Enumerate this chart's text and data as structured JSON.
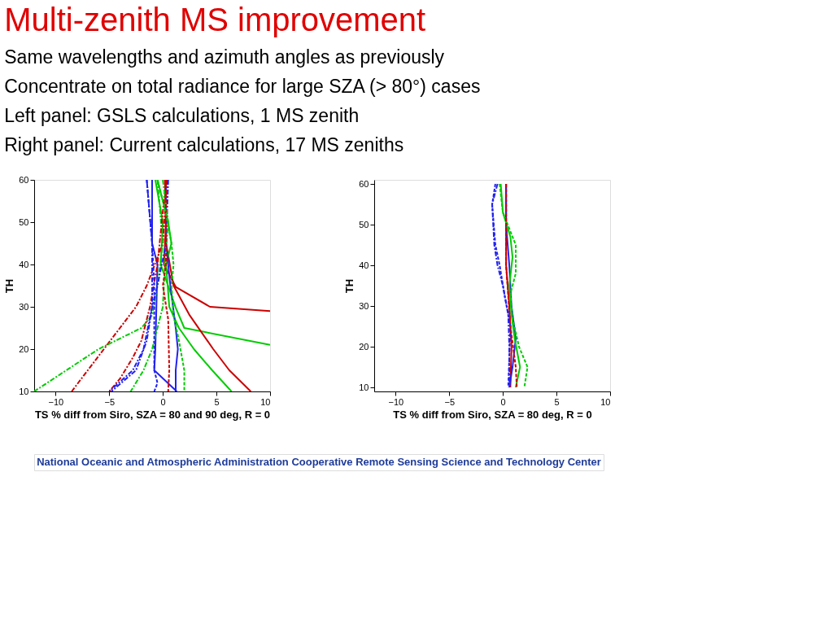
{
  "chart_data": [
    {
      "type": "line",
      "title": "Multi-zenith MS improvement",
      "xlabel": "TS % diff from Siro, SZA = 80 and 90 deg, R = 0",
      "ylabel": "TH",
      "xlim": [
        -12,
        10
      ],
      "xticks": [
        -10,
        -5,
        0,
        5,
        10
      ],
      "ylim": [
        10,
        60
      ],
      "yticks": [
        10,
        20,
        30,
        40,
        50,
        60
      ],
      "grid": false,
      "legend": false,
      "annotations": [
        "Same wavelengths and azimuth angles as previously",
        "Concentrate on total radiance for large SZA (> 80°) cases",
        "Left panel:  GSLS calculations, 1 MS zenith",
        "Right panel:  Current calculations, 17 MS zeniths",
        "National Oceanic and Atmospheric Administration Cooperative Remote Sensing Science and Technology Center"
      ],
      "series": [
        {
          "color": "#cc0000",
          "line_style": "solid",
          "x": [
            0.2,
            0.3,
            0.1,
            1.2,
            4.4,
            10
          ],
          "values": [
            60,
            50,
            40,
            34.7,
            30,
            29
          ]
        },
        {
          "color": "#00cc00",
          "line_style": "solid",
          "x": [
            -0.7,
            0,
            -0.2,
            1.2,
            2,
            10
          ],
          "values": [
            60,
            50,
            40,
            29.8,
            25,
            21
          ]
        },
        {
          "color": "#cc0000",
          "line_style": "solid",
          "x": [
            0.2,
            0.3,
            1,
            2.5,
            4.7,
            6.2,
            8.2
          ],
          "values": [
            60,
            45,
            35,
            28,
            20,
            15,
            10
          ]
        },
        {
          "color": "#00cc00",
          "line_style": "solid",
          "x": [
            -0.5,
            0.5,
            0.8,
            0.3,
            0.6,
            1.5,
            2.9,
            4.6,
            6.4
          ],
          "values": [
            60,
            50,
            45,
            40,
            30,
            25,
            20,
            15,
            10
          ]
        },
        {
          "color": "#2222ee",
          "line_style": "solid",
          "x": [
            -1,
            -1,
            -0.5,
            -0.6,
            -0.7,
            -0.8,
            1.3
          ],
          "values": [
            60,
            45,
            40,
            30,
            20,
            15,
            10
          ]
        },
        {
          "color": "#2222ee",
          "line_style": "solid",
          "x": [
            0.3,
            0.3,
            0.7,
            1.2,
            1.4,
            1.2,
            1.2
          ],
          "values": [
            60,
            45,
            35,
            25,
            20,
            15,
            10
          ]
        },
        {
          "color": "#cc0000",
          "line_style": "dashdot",
          "x": [
            0.4,
            0,
            -1.5,
            -2.5,
            -4,
            -5.5,
            -7,
            -8.5
          ],
          "values": [
            60,
            45,
            35,
            30,
            25,
            20,
            15,
            10
          ]
        },
        {
          "color": "#00cc00",
          "line_style": "dashdot",
          "x": [
            -0.5,
            0,
            -0.5,
            -1,
            -2,
            -6,
            -9,
            -12
          ],
          "values": [
            60,
            45,
            35,
            28,
            25,
            20,
            15,
            10
          ]
        },
        {
          "color": "#cc0000",
          "line_style": "dashdot",
          "x": [
            0.3,
            -0.5,
            -1.2,
            -2,
            -2.8,
            -4,
            -5
          ],
          "values": [
            60,
            40,
            30,
            22,
            18,
            13,
            10
          ]
        },
        {
          "color": "#2222ee",
          "line_style": "dashdot",
          "x": [
            0.5,
            0.3,
            -0.5,
            -1,
            -1.5,
            -2.5,
            -4.8
          ],
          "values": [
            60,
            45,
            35,
            30,
            22,
            15,
            10
          ]
        },
        {
          "color": "#2222ee",
          "line_style": "dashdot",
          "x": [
            -1.5,
            -1,
            -1,
            -1.8,
            -2.8,
            -5
          ],
          "values": [
            60,
            45,
            30,
            20,
            15,
            10
          ]
        },
        {
          "color": "#00cc00",
          "line_style": "dashdot",
          "x": [
            0,
            0.5,
            0.2,
            0,
            -0.5,
            -1,
            -1.8,
            -3
          ],
          "values": [
            60,
            50,
            40,
            30,
            25,
            20,
            15,
            10
          ]
        },
        {
          "color": "#2222ee",
          "line_style": "dashed",
          "x": [
            -1.5,
            -1,
            -0.8,
            -0.8,
            -0.8,
            -0.5,
            -0.8
          ],
          "values": [
            60,
            45,
            35,
            25,
            15,
            12,
            10
          ]
        },
        {
          "color": "#cc0000",
          "line_style": "dashed",
          "x": [
            0.3,
            0.3,
            0,
            0.5,
            0.6,
            0.5
          ],
          "values": [
            60,
            40,
            35,
            27,
            15,
            10
          ]
        },
        {
          "color": "#00cc00",
          "line_style": "dashed",
          "x": [
            -0.5,
            0.3,
            0.8,
            1,
            0.8,
            1,
            1.5,
            2,
            2
          ],
          "values": [
            60,
            52,
            45,
            40,
            35,
            28,
            22,
            15,
            10
          ]
        }
      ]
    },
    {
      "type": "line",
      "xlabel": "TS % diff from Siro, SZA = 80 deg, R = 0",
      "ylabel": "TH",
      "xlim": [
        -12,
        10
      ],
      "xticks": [
        -10,
        -5,
        0,
        5,
        10
      ],
      "ylim": [
        9,
        61
      ],
      "yticks": [
        10,
        20,
        30,
        40,
        50,
        60
      ],
      "grid": false,
      "legend": false,
      "series": [
        {
          "color": "#cc0000",
          "line_style": "solid",
          "x": [
            0.3,
            0.3,
            0.6,
            0.8,
            0.7
          ],
          "values": [
            60,
            40,
            30,
            20,
            10
          ]
        },
        {
          "color": "#2222ee",
          "line_style": "solid",
          "x": [
            0.3,
            0.3,
            0.6,
            0.8,
            1.2,
            0.9,
            0.6
          ],
          "values": [
            60,
            50,
            40,
            30,
            22,
            15,
            10
          ]
        },
        {
          "color": "#00cc00",
          "line_style": "solid",
          "x": [
            -0.2,
            0,
            0.7,
            0.9,
            0.6,
            0.8,
            1.1,
            1.6,
            1.2
          ],
          "values": [
            60,
            53,
            47,
            42,
            35,
            28,
            22,
            15,
            10
          ]
        },
        {
          "color": "#00cc00",
          "line_style": "dashed",
          "x": [
            -0.3,
            0,
            1.2,
            1.2,
            0.7,
            0.9,
            1.5,
            2.3,
            2
          ],
          "values": [
            60,
            53,
            45,
            38,
            33,
            27,
            20,
            15,
            10
          ]
        },
        {
          "color": "#2222ee",
          "line_style": "dashdot",
          "x": [
            -0.5,
            -1,
            -0.8,
            -0.5,
            0,
            0.5,
            0.6,
            0.6
          ],
          "values": [
            60,
            55,
            45,
            40,
            35,
            28,
            20,
            10
          ]
        },
        {
          "color": "#2222ee",
          "line_style": "dashed",
          "x": [
            -0.7,
            -1,
            -0.7,
            -0.3,
            0.2,
            0.7,
            0.5
          ],
          "values": [
            60,
            55,
            45,
            40,
            32,
            25,
            10
          ]
        },
        {
          "color": "#cc0000",
          "line_style": "dashed",
          "x": [
            0.3,
            0.3,
            0.7,
            1.2,
            1.3
          ],
          "values": [
            60,
            40,
            25,
            15,
            10
          ]
        }
      ]
    }
  ]
}
